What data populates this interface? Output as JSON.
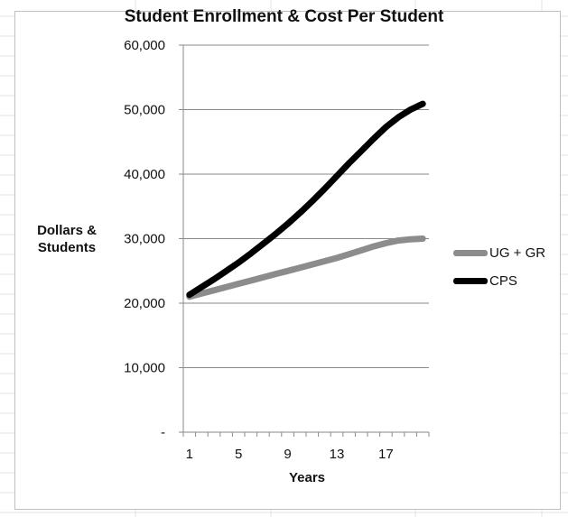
{
  "chart_data": {
    "type": "line",
    "title": "Student Enrollment & Cost Per Student",
    "xlabel": "Years",
    "ylabel_lines": [
      "Dollars &",
      "Students"
    ],
    "x": [
      1,
      2,
      3,
      4,
      5,
      6,
      7,
      8,
      9,
      10,
      11,
      12,
      13,
      14,
      15,
      16,
      17,
      18,
      19,
      20
    ],
    "x_tick_labels": [
      "1",
      "5",
      "9",
      "13",
      "17"
    ],
    "x_tick_values": [
      1,
      5,
      9,
      13,
      17
    ],
    "y_tick_labels": [
      "-",
      "10,000",
      "20,000",
      "30,000",
      "40,000",
      "50,000",
      "60,000"
    ],
    "y_tick_values": [
      0,
      10000,
      20000,
      30000,
      40000,
      50000,
      60000
    ],
    "ylim": [
      0,
      60000
    ],
    "grid": "horizontal",
    "legend_position": "right",
    "series": [
      {
        "name": "UG + GR",
        "color": "#8c8c8c",
        "values": [
          21000,
          21500,
          22000,
          22500,
          23000,
          23500,
          24000,
          24500,
          25000,
          25500,
          26000,
          26500,
          27000,
          27600,
          28200,
          28800,
          29300,
          29700,
          29900,
          30000
        ]
      },
      {
        "name": "CPS",
        "color": "#000000",
        "values": [
          21300,
          22500,
          23700,
          25000,
          26300,
          27700,
          29200,
          30700,
          32300,
          34000,
          35800,
          37700,
          39700,
          41700,
          43600,
          45500,
          47300,
          48800,
          50000,
          50900
        ]
      }
    ]
  }
}
